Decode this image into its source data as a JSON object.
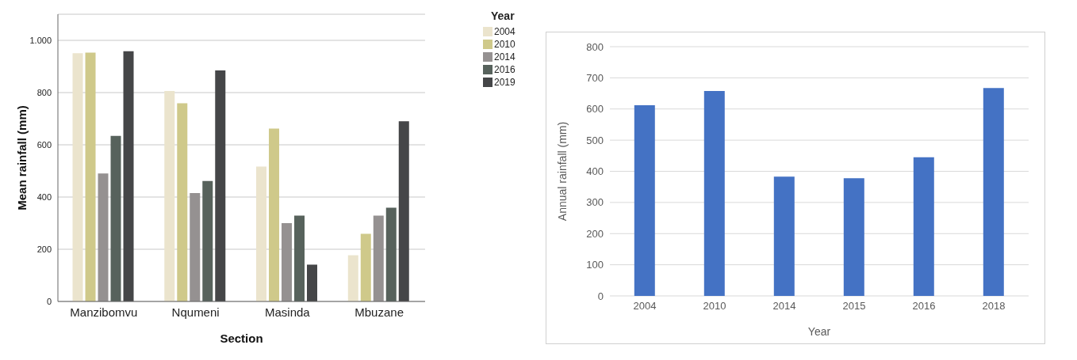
{
  "chart_data": [
    {
      "type": "bar",
      "xlabel": "Section",
      "ylabel": "Mean rainfall (mm)",
      "legend_title": "Year",
      "categories": [
        "Manzibomvu",
        "Nqumeni",
        "Masinda",
        "Mbuzane"
      ],
      "series": [
        {
          "name": "2004",
          "color": "#ebe4cd",
          "values": [
            951,
            806,
            517,
            177
          ]
        },
        {
          "name": "2010",
          "color": "#cfc98a",
          "values": [
            953,
            759,
            662,
            259
          ]
        },
        {
          "name": "2014",
          "color": "#959191",
          "values": [
            490,
            415,
            300,
            329
          ]
        },
        {
          "name": "2016",
          "color": "#57625c",
          "values": [
            634,
            461,
            329,
            359
          ]
        },
        {
          "name": "2019",
          "color": "#454648",
          "values": [
            958,
            885,
            141,
            690
          ]
        }
      ],
      "ylim": [
        0,
        1100
      ],
      "yticks": [
        0,
        200,
        400,
        600,
        800,
        {
          "value": 1000,
          "label": "1.000"
        }
      ],
      "grid": "y",
      "legend": "top right"
    },
    {
      "type": "bar",
      "xlabel": "Year",
      "ylabel": "Annual rainfall (mm)",
      "categories": [
        "2004",
        "2010",
        "2014",
        "2015",
        "2016",
        "2018"
      ],
      "values": [
        612,
        658,
        383,
        378,
        445,
        667
      ],
      "color": "#4472c4",
      "ylim": [
        0,
        800
      ],
      "yticks": [
        0,
        100,
        200,
        300,
        400,
        500,
        600,
        700,
        800
      ],
      "grid": "y"
    }
  ]
}
